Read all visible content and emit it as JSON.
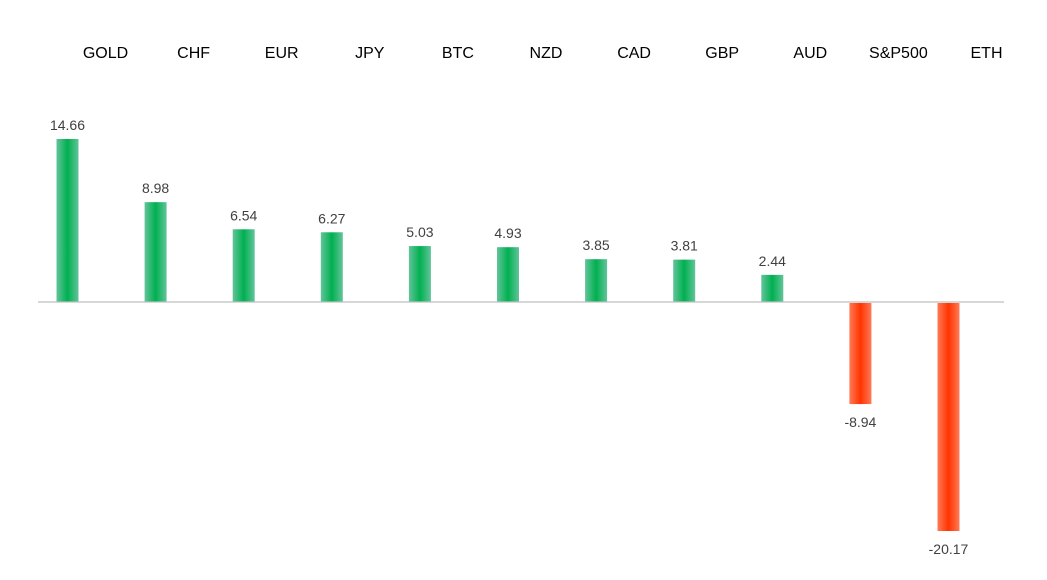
{
  "chart_data": {
    "type": "bar",
    "title": "",
    "xlabel": "",
    "ylabel": "",
    "categories": [
      "GOLD",
      "CHF",
      "EUR",
      "JPY",
      "BTC",
      "NZD",
      "CAD",
      "GBP",
      "AUD",
      "S&P500",
      "ETH"
    ],
    "values": [
      14.66,
      8.98,
      6.54,
      6.27,
      5.03,
      4.93,
      3.85,
      3.81,
      2.44,
      -8.94,
      -20.17
    ],
    "value_labels": [
      "14.66",
      "8.98",
      "6.54",
      "6.27",
      "5.03",
      "4.93",
      "3.85",
      "3.81",
      "2.44",
      "-8.94",
      "-20.17"
    ],
    "ylim": [
      -20.17,
      14.66
    ],
    "grid": false,
    "legend": "none",
    "category_label_position": "top",
    "colors": {
      "positive_top": "#00B050",
      "positive_edge": "#62C49A",
      "negative_top": "#FF3300",
      "negative_edge": "#FF7A55",
      "axis": "#BFBFBF"
    }
  }
}
